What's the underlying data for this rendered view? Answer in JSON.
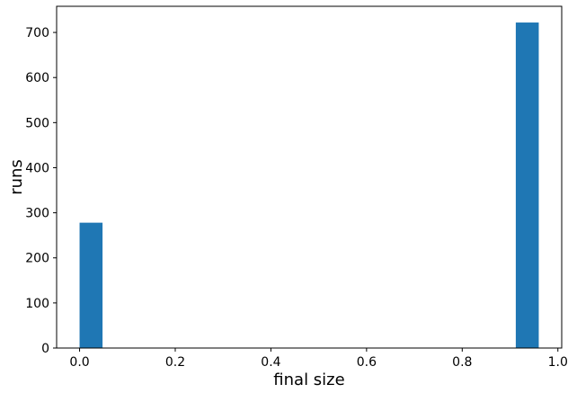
{
  "chart_data": {
    "type": "bar",
    "title": "",
    "xlabel": "final size",
    "ylabel": "runs",
    "xlim": [
      -0.048,
      1.008
    ],
    "ylim": [
      0,
      758
    ],
    "xticks": [
      0.0,
      0.2,
      0.4,
      0.6,
      0.8,
      1.0
    ],
    "xtick_labels": [
      "0.0",
      "0.2",
      "0.4",
      "0.6",
      "0.8",
      "1.0"
    ],
    "yticks": [
      0,
      100,
      200,
      300,
      400,
      500,
      600,
      700
    ],
    "ytick_labels": [
      "0",
      "100",
      "200",
      "300",
      "400",
      "500",
      "600",
      "700"
    ],
    "bins": [
      {
        "x0": 0.0,
        "x1": 0.048,
        "value": 278
      },
      {
        "x0": 0.912,
        "x1": 0.96,
        "value": 722
      }
    ],
    "bar_color": "#1f77b4",
    "grid": false,
    "legend": "none"
  }
}
